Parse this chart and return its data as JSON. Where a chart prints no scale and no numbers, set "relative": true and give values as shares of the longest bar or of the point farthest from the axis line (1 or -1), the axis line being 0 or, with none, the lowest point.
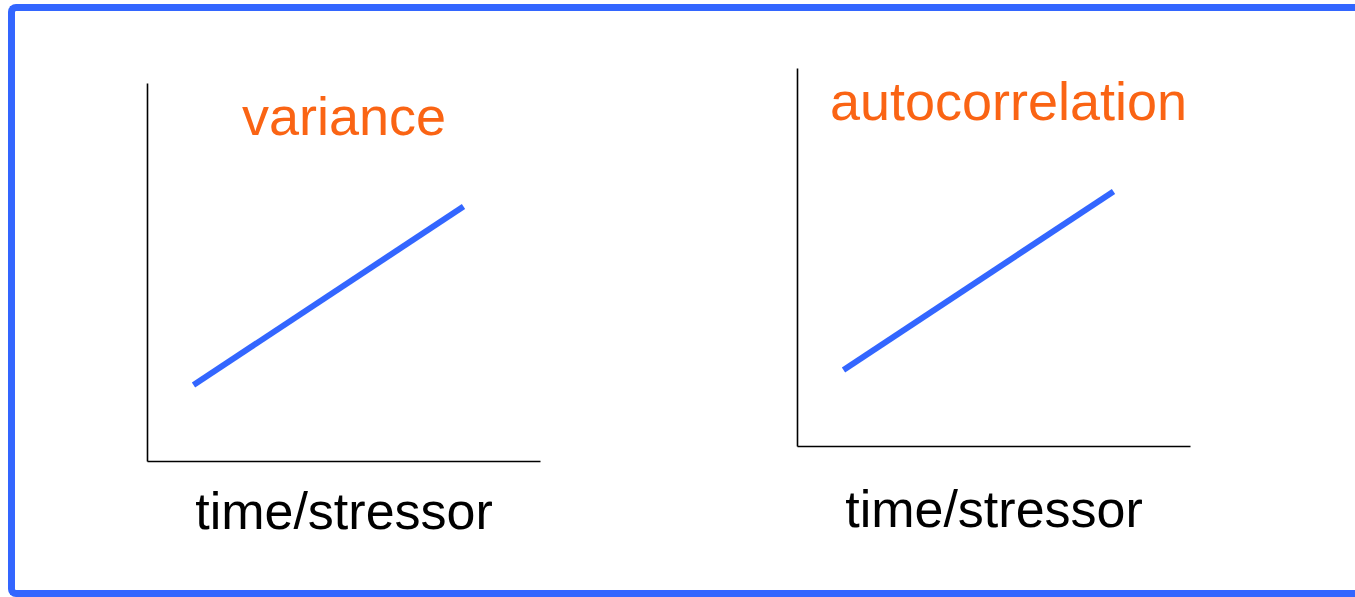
{
  "chart_data": [
    {
      "type": "line",
      "title": "variance",
      "xlabel": "time/stressor",
      "categories": [
        null,
        null
      ],
      "relative": true,
      "series": [
        {
          "color": "#3366ff",
          "values": [
            0.3,
            1
          ]
        }
      ]
    },
    {
      "type": "line",
      "title": "autocorrelation",
      "xlabel": "time/stressor",
      "categories": [
        null,
        null
      ],
      "relative": true,
      "series": [
        {
          "color": "#3366ff",
          "values": [
            0.3,
            1
          ]
        }
      ]
    }
  ]
}
